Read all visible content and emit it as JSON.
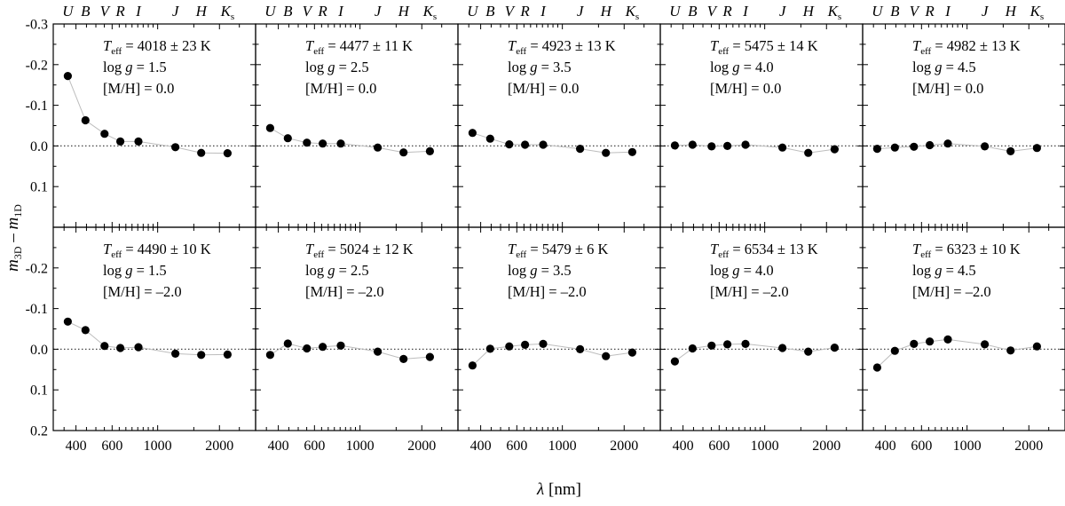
{
  "chart_data": {
    "type": "scatter",
    "layout": {
      "rows": 2,
      "cols": 5
    },
    "xlabel_symbol": "λ",
    "xlabel_unit": "[nm]",
    "ylabel": {
      "main": "m",
      "sub1": "3D",
      "sep": " – ",
      "main2": "m",
      "sub2": "1D"
    },
    "x_scale": "log",
    "xlim": [
      310,
      3000
    ],
    "ylim": [
      0.2,
      -0.3
    ],
    "y_inverted": true,
    "zero_line": true,
    "xticks": [
      400,
      600,
      1000,
      2000
    ],
    "xtick_labels": [
      "400",
      "600",
      "1000",
      "2000"
    ],
    "yticks": [
      -0.3,
      -0.2,
      -0.1,
      0.0,
      0.1,
      0.2
    ],
    "ytick_labels_top": [
      "-0.3",
      "-0.2",
      "-0.1",
      "0.0",
      "0.1"
    ],
    "ytick_labels_bottom": [
      "-0.2",
      "-0.1",
      "0.0",
      "0.1",
      "0.2"
    ],
    "bands": [
      {
        "letter": "U",
        "sub": "",
        "wavelength": 365
      },
      {
        "letter": "B",
        "sub": "",
        "wavelength": 445
      },
      {
        "letter": "V",
        "sub": "",
        "wavelength": 551
      },
      {
        "letter": "R",
        "sub": "",
        "wavelength": 658
      },
      {
        "letter": "I",
        "sub": "",
        "wavelength": 806
      },
      {
        "letter": "J",
        "sub": "",
        "wavelength": 1220
      },
      {
        "letter": "H",
        "sub": "",
        "wavelength": 1630
      },
      {
        "letter": "K",
        "sub": "s",
        "wavelength": 2190
      }
    ],
    "panels": [
      {
        "teff": "4018 ± 23 K",
        "logg": "1.5",
        "mh": "0.0",
        "values": [
          -0.172,
          -0.063,
          -0.03,
          -0.011,
          -0.011,
          0.003,
          0.017,
          0.018
        ]
      },
      {
        "teff": "4477 ± 11 K",
        "logg": "2.5",
        "mh": "0.0",
        "values": [
          -0.044,
          -0.019,
          -0.008,
          -0.006,
          -0.006,
          0.004,
          0.016,
          0.013
        ]
      },
      {
        "teff": "4923 ± 13 K",
        "logg": "3.5",
        "mh": "0.0",
        "values": [
          -0.032,
          -0.018,
          -0.004,
          -0.003,
          -0.003,
          0.007,
          0.017,
          0.015
        ]
      },
      {
        "teff": "5475 ± 14 K",
        "logg": "4.0",
        "mh": "0.0",
        "values": [
          -0.001,
          -0.003,
          0.001,
          0.0,
          -0.003,
          0.004,
          0.017,
          0.008
        ]
      },
      {
        "teff": "4982 ± 13 K",
        "logg": "4.5",
        "mh": "0.0",
        "values": [
          0.007,
          0.004,
          0.002,
          -0.002,
          -0.006,
          0.001,
          0.013,
          0.005
        ]
      },
      {
        "teff": "4490 ± 10 K",
        "logg": "1.5",
        "mh": "–2.0",
        "values": [
          -0.068,
          -0.047,
          -0.008,
          -0.003,
          -0.005,
          0.011,
          0.014,
          0.013
        ]
      },
      {
        "teff": "5024 ± 12 K",
        "logg": "2.5",
        "mh": "–2.0",
        "values": [
          0.014,
          -0.014,
          -0.002,
          -0.006,
          -0.009,
          0.006,
          0.024,
          0.019
        ]
      },
      {
        "teff": "5479 ± 6 K",
        "logg": "3.5",
        "mh": "–2.0",
        "values": [
          0.04,
          -0.001,
          -0.007,
          -0.011,
          -0.013,
          0.0,
          0.017,
          0.008
        ]
      },
      {
        "teff": "6534 ± 13 K",
        "logg": "4.0",
        "mh": "–2.0",
        "values": [
          0.03,
          -0.002,
          -0.009,
          -0.012,
          -0.013,
          -0.003,
          0.006,
          -0.004
        ]
      },
      {
        "teff": "6323 ± 10 K",
        "logg": "4.5",
        "mh": "–2.0",
        "values": [
          0.045,
          0.004,
          -0.013,
          -0.019,
          -0.024,
          -0.012,
          0.003,
          -0.007
        ]
      }
    ]
  }
}
